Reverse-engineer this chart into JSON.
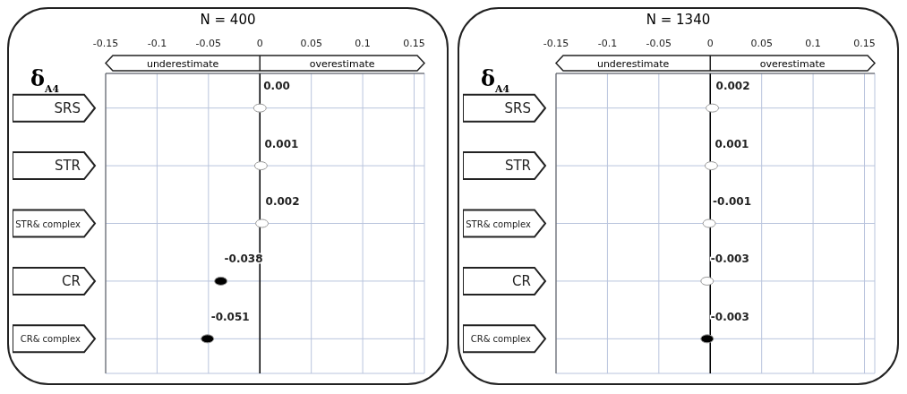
{
  "chart_data": [
    {
      "type": "scatter",
      "orientation": "horizontal",
      "title": "N = 400",
      "ylabel": "δ$_{A4}$",
      "categories": [
        "SRS",
        "STR",
        "STR& complex",
        "CR",
        "CR& complex"
      ],
      "values": [
        0,
        0.001,
        0.002,
        -0.038,
        -0.051
      ],
      "value_labels": [
        "0.00",
        "0.001",
        "0.002",
        "-0.038",
        "-0.051"
      ],
      "colors": [
        "#ffffff",
        "#ffffff",
        "#ffffff",
        "#000000",
        "#000000"
      ],
      "marker": "circle",
      "xlim": [
        -0.15,
        0.16
      ],
      "xticks": [
        -0.15,
        -0.1,
        -0.05,
        0,
        0.05,
        0.1,
        0.15
      ],
      "grid": true,
      "ref_lines": [
        {
          "axis": "x",
          "value": 0,
          "color": "#000000"
        }
      ],
      "annotations": [
        "underestimate",
        "overestimate"
      ]
    },
    {
      "type": "scatter",
      "orientation": "horizontal",
      "title": "N = 1340",
      "ylabel": "δ$_{A4}$",
      "categories": [
        "SRS",
        "STR",
        "STR& complex",
        "CR",
        "CR& complex"
      ],
      "values": [
        0.002,
        0.001,
        -0.001,
        -0.003,
        -0.003
      ],
      "value_labels": [
        "0.002",
        "0.001",
        "-0.001",
        "-0.003",
        "-0.003"
      ],
      "colors": [
        "#ffffff",
        "#ffffff",
        "#ffffff",
        "#ffffff",
        "#000000"
      ],
      "marker": "circle",
      "xlim": [
        -0.15,
        0.16
      ],
      "xticks": [
        -0.15,
        -0.1,
        -0.05,
        0,
        0.05,
        0.1,
        0.15
      ],
      "grid": true,
      "ref_lines": [
        {
          "axis": "x",
          "value": 0,
          "color": "#000000"
        }
      ],
      "annotations": [
        "underestimate",
        "overestimate"
      ]
    }
  ]
}
